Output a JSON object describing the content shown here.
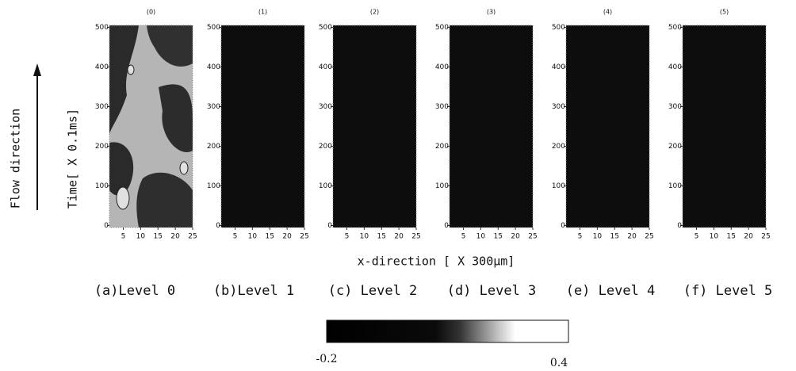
{
  "y_label": "Time[ X 0.1ms]",
  "x_label": "x-direction [ X 300μm]",
  "flow_label": "Flow direction",
  "colorbar": {
    "min": -0.2,
    "max": 0.4
  },
  "chart_data": [
    {
      "type": "heatmap",
      "title": "(0)",
      "caption": "(a)Level 0",
      "xlim": [
        1,
        25
      ],
      "ylim": [
        -5,
        505
      ],
      "xticks": [
        5,
        10,
        15,
        20,
        25
      ],
      "yticks": [
        0,
        100,
        200,
        300,
        400,
        500
      ]
    },
    {
      "type": "heatmap",
      "title": "(1)",
      "caption": "(b)Level 1",
      "xlim": [
        1,
        25
      ],
      "ylim": [
        -5,
        505
      ],
      "xticks": [
        5,
        10,
        15,
        20,
        25
      ],
      "yticks": [
        0,
        100,
        200,
        300,
        400,
        500
      ]
    },
    {
      "type": "heatmap",
      "title": "(2)",
      "caption": "(c) Level 2",
      "xlim": [
        1,
        25
      ],
      "ylim": [
        -5,
        505
      ],
      "xticks": [
        5,
        10,
        15,
        20,
        25
      ],
      "yticks": [
        0,
        100,
        200,
        300,
        400,
        500
      ]
    },
    {
      "type": "heatmap",
      "title": "(3)",
      "caption": "(d) Level 3",
      "xlim": [
        1,
        25
      ],
      "ylim": [
        -5,
        505
      ],
      "xticks": [
        5,
        10,
        15,
        20,
        25
      ],
      "yticks": [
        0,
        100,
        200,
        300,
        400,
        500
      ]
    },
    {
      "type": "heatmap",
      "title": "(4)",
      "caption": "(e) Level 4",
      "xlim": [
        1,
        25
      ],
      "ylim": [
        -5,
        505
      ],
      "xticks": [
        5,
        10,
        15,
        20,
        25
      ],
      "yticks": [
        0,
        100,
        200,
        300,
        400,
        500
      ]
    },
    {
      "type": "heatmap",
      "title": "(5)",
      "caption": "(f) Level 5",
      "xlim": [
        1,
        25
      ],
      "ylim": [
        -5,
        505
      ],
      "xticks": [
        5,
        10,
        15,
        20,
        25
      ],
      "yticks": [
        0,
        100,
        200,
        300,
        400,
        500
      ]
    }
  ]
}
